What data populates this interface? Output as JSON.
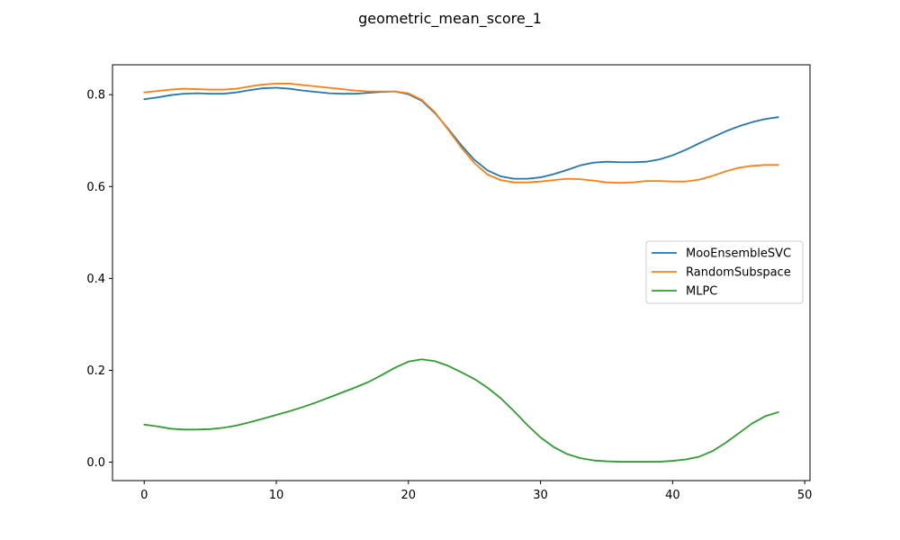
{
  "chart_data": {
    "type": "line",
    "title": "geometric_mean_score_1",
    "xlabel": "",
    "ylabel": "",
    "xlim": [
      -2.4,
      50.4
    ],
    "ylim": [
      -0.04,
      0.865
    ],
    "xticks": [
      0,
      10,
      20,
      30,
      40,
      50
    ],
    "yticks": [
      0.0,
      0.2,
      0.4,
      0.6,
      0.8
    ],
    "xtick_labels": [
      "0",
      "10",
      "20",
      "30",
      "40",
      "50"
    ],
    "ytick_labels": [
      "0.0",
      "0.2",
      "0.4",
      "0.6",
      "0.8"
    ],
    "grid": false,
    "legend_position": "center-right",
    "x": [
      0,
      1,
      2,
      3,
      4,
      5,
      6,
      7,
      8,
      9,
      10,
      11,
      12,
      13,
      14,
      15,
      16,
      17,
      18,
      19,
      20,
      21,
      22,
      23,
      24,
      25,
      26,
      27,
      28,
      29,
      30,
      31,
      32,
      33,
      34,
      35,
      36,
      37,
      38,
      39,
      40,
      41,
      42,
      43,
      44,
      45,
      46,
      47,
      48
    ],
    "series": [
      {
        "name": "MooEnsembleSVC",
        "color": "#1f77b4",
        "values": [
          0.79,
          0.794,
          0.799,
          0.802,
          0.803,
          0.802,
          0.802,
          0.805,
          0.81,
          0.814,
          0.815,
          0.813,
          0.809,
          0.806,
          0.803,
          0.802,
          0.802,
          0.804,
          0.806,
          0.807,
          0.801,
          0.787,
          0.76,
          0.726,
          0.69,
          0.658,
          0.635,
          0.622,
          0.617,
          0.617,
          0.62,
          0.627,
          0.636,
          0.646,
          0.652,
          0.654,
          0.653,
          0.653,
          0.654,
          0.659,
          0.668,
          0.68,
          0.694,
          0.707,
          0.72,
          0.731,
          0.74,
          0.747,
          0.751
        ]
      },
      {
        "name": "RandomSubspace",
        "color": "#ff7f0e",
        "values": [
          0.805,
          0.808,
          0.811,
          0.813,
          0.812,
          0.811,
          0.811,
          0.813,
          0.818,
          0.822,
          0.824,
          0.824,
          0.821,
          0.818,
          0.815,
          0.812,
          0.809,
          0.807,
          0.807,
          0.807,
          0.803,
          0.789,
          0.762,
          0.724,
          0.685,
          0.651,
          0.626,
          0.614,
          0.609,
          0.609,
          0.611,
          0.614,
          0.617,
          0.616,
          0.613,
          0.609,
          0.608,
          0.609,
          0.612,
          0.612,
          0.611,
          0.611,
          0.615,
          0.623,
          0.633,
          0.641,
          0.645,
          0.647,
          0.647
        ]
      },
      {
        "name": "MLPC",
        "color": "#2ca02c",
        "values": [
          0.082,
          0.078,
          0.073,
          0.071,
          0.071,
          0.072,
          0.075,
          0.08,
          0.087,
          0.095,
          0.103,
          0.111,
          0.12,
          0.13,
          0.141,
          0.152,
          0.163,
          0.175,
          0.19,
          0.206,
          0.219,
          0.224,
          0.22,
          0.21,
          0.196,
          0.181,
          0.162,
          0.139,
          0.111,
          0.081,
          0.054,
          0.033,
          0.018,
          0.009,
          0.004,
          0.002,
          0.001,
          0.001,
          0.001,
          0.001,
          0.003,
          0.006,
          0.012,
          0.024,
          0.042,
          0.063,
          0.084,
          0.1,
          0.109
        ]
      }
    ]
  }
}
